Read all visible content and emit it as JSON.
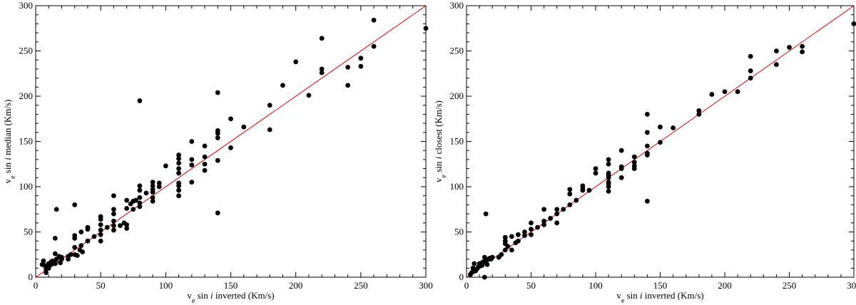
{
  "chart_data": [
    {
      "type": "scatter",
      "xlabel": {
        "pre": "v",
        "sub": "e",
        "mid": " sin ",
        "ital": "i",
        "post": " inverted (Km/s)"
      },
      "ylabel": {
        "pre": "v",
        "sub": "e",
        "mid": " sin ",
        "ital": "i",
        "post": " median (Km/s)"
      },
      "xlim": [
        0,
        300
      ],
      "ylim": [
        0,
        300
      ],
      "xticks": [
        0,
        50,
        100,
        150,
        200,
        250,
        300
      ],
      "yticks": [
        0,
        50,
        100,
        150,
        200,
        250,
        300
      ],
      "minor_ticks": 4,
      "grid": false,
      "reference_line": {
        "x": [
          0,
          300
        ],
        "y": [
          0,
          300
        ],
        "color": "#e00000"
      },
      "points": [
        [
          5,
          14
        ],
        [
          6,
          18
        ],
        [
          7,
          13
        ],
        [
          8,
          9
        ],
        [
          8,
          5
        ],
        [
          9,
          12
        ],
        [
          10,
          10
        ],
        [
          10,
          15
        ],
        [
          12,
          14
        ],
        [
          12,
          17
        ],
        [
          13,
          18
        ],
        [
          15,
          26
        ],
        [
          15,
          43
        ],
        [
          15,
          15
        ],
        [
          16,
          20
        ],
        [
          16,
          75
        ],
        [
          18,
          23
        ],
        [
          19,
          16
        ],
        [
          20,
          22
        ],
        [
          20,
          20
        ],
        [
          25,
          20
        ],
        [
          25,
          23
        ],
        [
          27,
          25
        ],
        [
          30,
          80
        ],
        [
          30,
          33
        ],
        [
          30,
          43
        ],
        [
          30,
          46
        ],
        [
          30,
          25
        ],
        [
          32,
          24
        ],
        [
          34,
          30
        ],
        [
          35,
          50
        ],
        [
          35,
          35
        ],
        [
          36,
          28
        ],
        [
          40,
          53
        ],
        [
          40,
          40
        ],
        [
          40,
          55
        ],
        [
          45,
          45
        ],
        [
          50,
          67
        ],
        [
          50,
          64
        ],
        [
          50,
          58
        ],
        [
          50,
          52
        ],
        [
          50,
          47
        ],
        [
          50,
          40
        ],
        [
          55,
          55
        ],
        [
          60,
          90
        ],
        [
          60,
          75
        ],
        [
          60,
          70
        ],
        [
          60,
          62
        ],
        [
          60,
          57
        ],
        [
          60,
          52
        ],
        [
          65,
          57
        ],
        [
          68,
          60
        ],
        [
          70,
          85
        ],
        [
          70,
          76
        ],
        [
          70,
          54
        ],
        [
          70,
          58
        ],
        [
          73,
          81
        ],
        [
          75,
          84
        ],
        [
          75,
          75
        ],
        [
          77,
          85
        ],
        [
          80,
          195
        ],
        [
          80,
          101
        ],
        [
          80,
          96
        ],
        [
          80,
          88
        ],
        [
          80,
          82
        ],
        [
          80,
          78
        ],
        [
          85,
          93
        ],
        [
          90,
          105
        ],
        [
          90,
          101
        ],
        [
          90,
          97
        ],
        [
          90,
          94
        ],
        [
          90,
          88
        ],
        [
          90,
          84
        ],
        [
          95,
          100
        ],
        [
          95,
          104
        ],
        [
          100,
          123
        ],
        [
          110,
          135
        ],
        [
          110,
          131
        ],
        [
          110,
          126
        ],
        [
          110,
          120
        ],
        [
          110,
          115
        ],
        [
          110,
          104
        ],
        [
          110,
          101
        ],
        [
          110,
          96
        ],
        [
          110,
          90
        ],
        [
          120,
          150
        ],
        [
          120,
          130
        ],
        [
          120,
          124
        ],
        [
          120,
          105
        ],
        [
          130,
          145
        ],
        [
          130,
          133
        ],
        [
          130,
          125
        ],
        [
          130,
          118
        ],
        [
          140,
          204
        ],
        [
          140,
          162
        ],
        [
          140,
          159
        ],
        [
          140,
          154
        ],
        [
          140,
          129
        ],
        [
          140,
          71
        ],
        [
          150,
          175
        ],
        [
          150,
          143
        ],
        [
          160,
          166
        ],
        [
          180,
          190
        ],
        [
          180,
          163
        ],
        [
          190,
          212
        ],
        [
          200,
          238
        ],
        [
          210,
          201
        ],
        [
          220,
          264
        ],
        [
          220,
          230
        ],
        [
          220,
          226
        ],
        [
          240,
          232
        ],
        [
          240,
          212
        ],
        [
          250,
          242
        ],
        [
          250,
          233
        ],
        [
          260,
          284
        ],
        [
          260,
          255
        ],
        [
          300,
          275
        ]
      ]
    },
    {
      "type": "scatter",
      "xlabel": {
        "pre": "v",
        "sub": "e",
        "mid": " sin ",
        "ital": "i",
        "post": " inverted (Km/s)"
      },
      "ylabel": {
        "pre": "v",
        "sub": "e",
        "mid": " sin ",
        "ital": "i",
        "post": " closest (Km/s)"
      },
      "xlim": [
        0,
        300
      ],
      "ylim": [
        0,
        300
      ],
      "xticks": [
        0,
        50,
        100,
        150,
        200,
        250,
        300
      ],
      "yticks": [
        0,
        50,
        100,
        150,
        200,
        250,
        300
      ],
      "minor_ticks": 4,
      "grid": false,
      "reference_line": {
        "x": [
          0,
          300
        ],
        "y": [
          0,
          300
        ],
        "color": "#e00000"
      },
      "points": [
        [
          3,
          3
        ],
        [
          4,
          5
        ],
        [
          5,
          6
        ],
        [
          5,
          10
        ],
        [
          6,
          8
        ],
        [
          6,
          15
        ],
        [
          7,
          7
        ],
        [
          8,
          9
        ],
        [
          9,
          11
        ],
        [
          10,
          12
        ],
        [
          10,
          15
        ],
        [
          12,
          13
        ],
        [
          12,
          16
        ],
        [
          13,
          17
        ],
        [
          14,
          0
        ],
        [
          14,
          22
        ],
        [
          15,
          18
        ],
        [
          15,
          70
        ],
        [
          16,
          14
        ],
        [
          17,
          20
        ],
        [
          18,
          21
        ],
        [
          19,
          20
        ],
        [
          20,
          22
        ],
        [
          25,
          22
        ],
        [
          27,
          25
        ],
        [
          30,
          30
        ],
        [
          30,
          37
        ],
        [
          30,
          40
        ],
        [
          30,
          44
        ],
        [
          32,
          34
        ],
        [
          35,
          45
        ],
        [
          35,
          30
        ],
        [
          38,
          38
        ],
        [
          40,
          40
        ],
        [
          40,
          47
        ],
        [
          45,
          46
        ],
        [
          45,
          50
        ],
        [
          50,
          53
        ],
        [
          50,
          60
        ],
        [
          50,
          47
        ],
        [
          55,
          55
        ],
        [
          60,
          75
        ],
        [
          60,
          62
        ],
        [
          60,
          58
        ],
        [
          65,
          65
        ],
        [
          70,
          70
        ],
        [
          70,
          75
        ],
        [
          70,
          60
        ],
        [
          75,
          75
        ],
        [
          80,
          80
        ],
        [
          80,
          92
        ],
        [
          80,
          97
        ],
        [
          85,
          85
        ],
        [
          90,
          96
        ],
        [
          90,
          98
        ],
        [
          90,
          101
        ],
        [
          95,
          96
        ],
        [
          100,
          120
        ],
        [
          100,
          115
        ],
        [
          110,
          130
        ],
        [
          110,
          125
        ],
        [
          110,
          115
        ],
        [
          110,
          113
        ],
        [
          110,
          110
        ],
        [
          110,
          105
        ],
        [
          110,
          103
        ],
        [
          110,
          100
        ],
        [
          110,
          95
        ],
        [
          120,
          140
        ],
        [
          120,
          122
        ],
        [
          120,
          120
        ],
        [
          120,
          110
        ],
        [
          130,
          133
        ],
        [
          130,
          127
        ],
        [
          130,
          123
        ],
        [
          130,
          120
        ],
        [
          140,
          180
        ],
        [
          140,
          160
        ],
        [
          140,
          145
        ],
        [
          140,
          137
        ],
        [
          140,
          135
        ],
        [
          140,
          84
        ],
        [
          150,
          166
        ],
        [
          150,
          149
        ],
        [
          160,
          165
        ],
        [
          180,
          184
        ],
        [
          180,
          180
        ],
        [
          190,
          202
        ],
        [
          200,
          205
        ],
        [
          210,
          205
        ],
        [
          220,
          244
        ],
        [
          220,
          228
        ],
        [
          220,
          220
        ],
        [
          240,
          250
        ],
        [
          240,
          235
        ],
        [
          250,
          254
        ],
        [
          260,
          255
        ],
        [
          260,
          249
        ],
        [
          300,
          280
        ]
      ]
    }
  ]
}
